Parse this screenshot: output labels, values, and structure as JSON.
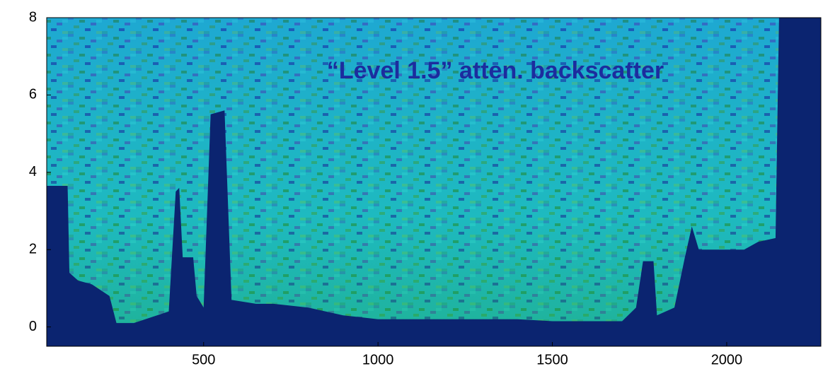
{
  "chart_data": {
    "type": "area",
    "annotation": "“Level 1.5” atten. backscatter",
    "x": [
      50,
      110,
      115,
      140,
      180,
      230,
      250,
      300,
      400,
      420,
      430,
      440,
      470,
      480,
      500,
      520,
      560,
      580,
      650,
      700,
      800,
      900,
      1000,
      1200,
      1400,
      1500,
      1700,
      1740,
      1760,
      1790,
      1800,
      1850,
      1880,
      1900,
      1920,
      1980,
      2050,
      2090,
      2140,
      2150,
      2270
    ],
    "series": [
      {
        "color": "#0b2470",
        "values": [
          3.65,
          3.65,
          1.4,
          1.2,
          1.1,
          0.8,
          0.1,
          0.1,
          0.4,
          3.5,
          3.6,
          1.8,
          1.8,
          0.8,
          0.5,
          5.5,
          5.6,
          0.7,
          0.6,
          0.6,
          0.5,
          0.3,
          0.2,
          0.2,
          0.2,
          0.15,
          0.15,
          0.5,
          1.7,
          1.7,
          0.3,
          0.5,
          1.8,
          2.6,
          2.0,
          2.0,
          2.0,
          2.2,
          2.3,
          8.0,
          8.0
        ]
      }
    ],
    "xlim": [
      50,
      2270
    ],
    "xticks": [
      500,
      1000,
      1500,
      2000
    ],
    "ylim": [
      -0.5,
      8
    ],
    "yticks": [
      0,
      2,
      4,
      6,
      8
    ]
  }
}
